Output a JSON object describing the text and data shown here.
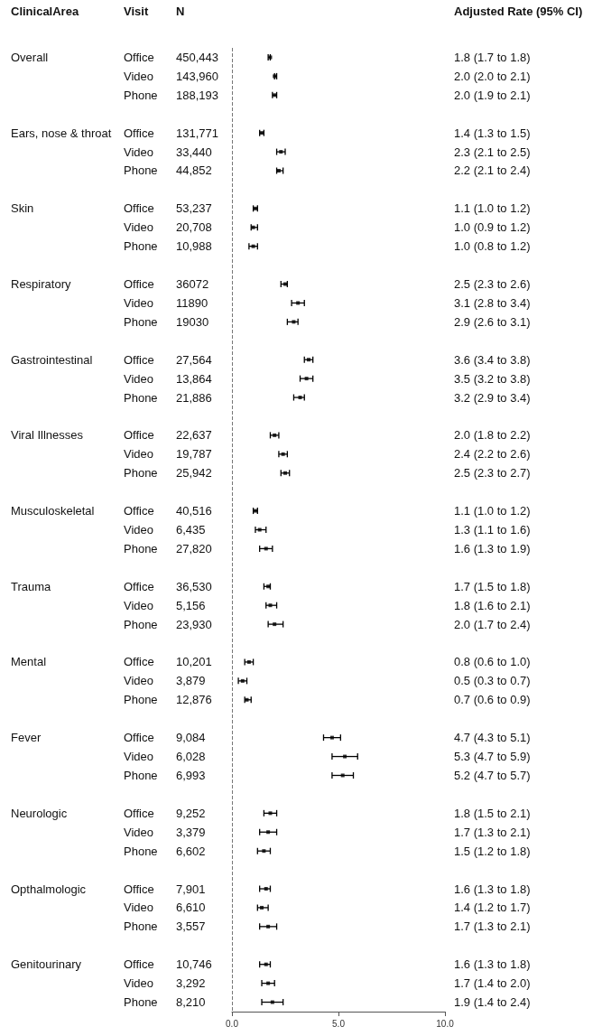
{
  "chart_data": {
    "type": "scatter",
    "orientation": "horizontal",
    "marker": "square",
    "color": "#000000",
    "categories": [
      "Office",
      "Video",
      "Phone",
      null,
      "Office",
      "Video",
      "Phone",
      null,
      "Office",
      "Video",
      "Phone",
      null,
      "Office",
      "Video",
      "Phone",
      null,
      "Office",
      "Video",
      "Phone",
      null,
      "Office",
      "Video",
      "Phone",
      null,
      "Office",
      "Video",
      "Phone",
      null,
      "Office",
      "Video",
      "Phone",
      null,
      "Office",
      "Video",
      "Phone",
      null,
      "Office",
      "Video",
      "Phone",
      null,
      "Office",
      "Video",
      "Phone",
      null,
      "Office",
      "Video",
      "Phone",
      null,
      "Office",
      "Video",
      "Phone"
    ],
    "values": [
      1.8,
      2.0,
      2.0,
      null,
      1.4,
      2.3,
      2.2,
      null,
      1.1,
      1.0,
      1.0,
      null,
      2.5,
      3.1,
      2.9,
      null,
      3.6,
      3.5,
      3.2,
      null,
      2.0,
      2.4,
      2.5,
      null,
      1.1,
      1.3,
      1.6,
      null,
      1.7,
      1.8,
      2.0,
      null,
      0.8,
      0.5,
      0.7,
      null,
      4.7,
      5.3,
      5.2,
      null,
      1.8,
      1.7,
      1.5,
      null,
      1.6,
      1.4,
      1.7,
      null,
      1.6,
      1.7,
      1.9
    ],
    "errors": [
      [
        1.7,
        1.8
      ],
      [
        2.0,
        2.1
      ],
      [
        1.9,
        2.1
      ],
      null,
      [
        1.3,
        1.5
      ],
      [
        2.1,
        2.5
      ],
      [
        2.1,
        2.4
      ],
      null,
      [
        1.0,
        1.2
      ],
      [
        0.9,
        1.2
      ],
      [
        0.8,
        1.2
      ],
      null,
      [
        2.3,
        2.6
      ],
      [
        2.8,
        3.4
      ],
      [
        2.6,
        3.1
      ],
      null,
      [
        3.4,
        3.8
      ],
      [
        3.2,
        3.8
      ],
      [
        2.9,
        3.4
      ],
      null,
      [
        1.8,
        2.2
      ],
      [
        2.2,
        2.6
      ],
      [
        2.3,
        2.7
      ],
      null,
      [
        1.0,
        1.2
      ],
      [
        1.1,
        1.6
      ],
      [
        1.3,
        1.9
      ],
      null,
      [
        1.5,
        1.8
      ],
      [
        1.6,
        2.1
      ],
      [
        1.7,
        2.4
      ],
      null,
      [
        0.6,
        1.0
      ],
      [
        0.3,
        0.7
      ],
      [
        0.6,
        0.9
      ],
      null,
      [
        4.3,
        5.1
      ],
      [
        4.7,
        5.9
      ],
      [
        4.7,
        5.7
      ],
      null,
      [
        1.5,
        2.1
      ],
      [
        1.3,
        2.1
      ],
      [
        1.2,
        1.8
      ],
      null,
      [
        1.3,
        1.8
      ],
      [
        1.2,
        1.7
      ],
      [
        1.3,
        2.1
      ],
      null,
      [
        1.3,
        1.8
      ],
      [
        1.4,
        2.0
      ],
      [
        1.4,
        2.4
      ]
    ],
    "value_labels": [
      "1.8 (1.7 to 1.8)",
      "2.0 (2.0 to 2.1)",
      "2.0 (1.9 to 2.1)",
      null,
      "1.4 (1.3 to 1.5)",
      "2.3 (2.1 to 2.5)",
      "2.2 (2.1 to 2.4)",
      null,
      "1.1 (1.0 to 1.2)",
      "1.0 (0.9 to 1.2)",
      "1.0 (0.8 to 1.2)",
      null,
      "2.5 (2.3 to 2.6)",
      "3.1 (2.8 to 3.4)",
      "2.9 (2.6 to 3.1)",
      null,
      "3.6 (3.4 to 3.8)",
      "3.5 (3.2 to 3.8)",
      "3.2 (2.9 to 3.4)",
      null,
      "2.0 (1.8 to 2.2)",
      "2.4 (2.2 to 2.6)",
      "2.5 (2.3 to 2.7)",
      null,
      "1.1 (1.0 to 1.2)",
      "1.3 (1.1 to 1.6)",
      "1.6 (1.3 to 1.9)",
      null,
      "1.7 (1.5 to 1.8)",
      "1.8 (1.6 to 2.1)",
      "2.0 (1.7 to 2.4)",
      null,
      "0.8 (0.6 to 1.0)",
      "0.5 (0.3 to 0.7)",
      "0.7 (0.6 to 0.9)",
      null,
      "4.7 (4.3 to 5.1)",
      "5.3 (4.7 to 5.9)",
      "5.2 (4.7 to 5.7)",
      null,
      "1.8 (1.5 to 2.1)",
      "1.7 (1.3 to 2.1)",
      "1.5 (1.2 to 1.8)",
      null,
      "1.6 (1.3 to 1.8)",
      "1.4 (1.2 to 1.7)",
      "1.7 (1.3 to 2.1)",
      null,
      "1.6 (1.3 to 1.8)",
      "1.7 (1.4 to 2.0)",
      "1.9 (1.4 to 2.4)"
    ],
    "xlim": [
      0,
      10
    ],
    "xticks": [
      {
        "value": 0,
        "label": "0.0"
      },
      {
        "value": 5,
        "label": "5.0"
      },
      {
        "value": 10,
        "label": "10.0"
      }
    ],
    "ref_lines": [
      {
        "axis": "x",
        "value": 0,
        "label": null,
        "line_style": "dashed"
      }
    ],
    "annotations": [
      "ClinicalArea",
      "Visit",
      "N",
      "Adjusted Rate (95% CI)",
      "Overall",
      "Ears, nose & throat",
      "Skin",
      "Respiratory",
      "Gastrointestinal",
      "Viral Illnesses",
      "Musculoskeletal",
      "Trauma",
      "Mental",
      "Fever",
      "Neurologic",
      "Opthalmologic",
      "Genitourinary",
      "450,443",
      "143,960",
      "188,193",
      "131,771",
      "33,440",
      "44,852",
      "53,237",
      "20,708",
      "10,988",
      "36072",
      "11890",
      "19030",
      "27,564",
      "13,864",
      "21,886",
      "22,637",
      "19,787",
      "25,942",
      "40,516",
      "6,435",
      "27,820",
      "36,530",
      "5,156",
      "23,930",
      "10,201",
      "3,879",
      "12,876",
      "9,084",
      "6,028",
      "6,993",
      "9,252",
      "3,379",
      "6,602",
      "7,901",
      "6,610",
      "3,557",
      "10,746",
      "3,292",
      "8,210"
    ]
  }
}
